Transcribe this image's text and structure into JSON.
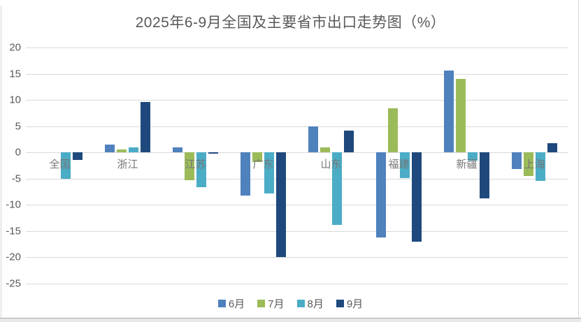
{
  "window": {
    "background": "#ffffff",
    "side_border_color": "#d6d6d6",
    "bottom_edge_color": "#ababab",
    "bottom_strip_color": "#e8e8e8"
  },
  "chart_data": {
    "type": "bar",
    "title": "2025年6-9月全国及主要省市出口走势图（%）",
    "categories": [
      "全国",
      "浙江",
      "江苏",
      "广东",
      "山东",
      "福建",
      "新疆",
      "上海"
    ],
    "series": [
      {
        "name": "6月",
        "color": "#4F81BD",
        "values": [
          0,
          1.5,
          1.0,
          -8.2,
          4.9,
          -16.3,
          15.6,
          -3.2
        ]
      },
      {
        "name": "7月",
        "color": "#9BBB59",
        "values": [
          0,
          0.5,
          -5.3,
          -1.9,
          1.0,
          8.4,
          14.0,
          -4.5
        ]
      },
      {
        "name": "8月",
        "color": "#4BACC6",
        "values": [
          -5.0,
          1.0,
          -6.6,
          -7.9,
          -13.9,
          -4.9,
          -1.6,
          -5.4
        ]
      },
      {
        "name": "9月",
        "color": "#1F497D",
        "values": [
          -1.4,
          9.6,
          -0.3,
          -20.0,
          4.2,
          -17.0,
          -8.8,
          1.7
        ]
      }
    ],
    "xlabel": "",
    "ylabel": "",
    "ylim": [
      -25,
      20
    ],
    "yticks": [
      20,
      15,
      10,
      5,
      0,
      -5,
      -10,
      -15,
      -20,
      -25
    ],
    "grid": true,
    "gridline_color": "#d9d9d9",
    "axis_text_color": "#595959",
    "category_label_color": "#767676",
    "legend_position": "bottom"
  }
}
